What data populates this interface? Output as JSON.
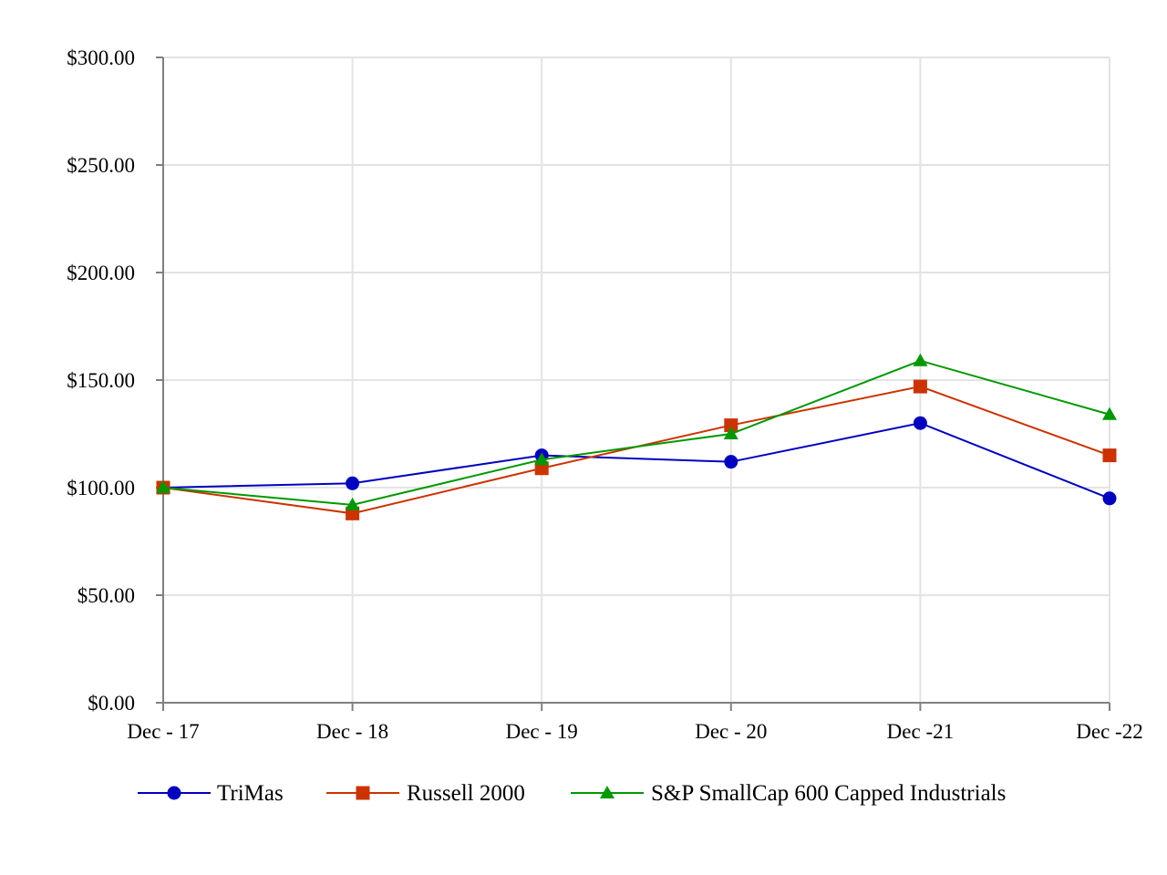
{
  "chart_data": {
    "type": "line",
    "categories": [
      "Dec - 17",
      "Dec - 18",
      "Dec - 19",
      "Dec - 20",
      "Dec -21",
      "Dec -22"
    ],
    "y_ticks": [
      "$0.00",
      "$50.00",
      "$100.00",
      "$150.00",
      "$200.00",
      "$250.00",
      "$300.00"
    ],
    "ylim": [
      0,
      300
    ],
    "grid": true,
    "legend_position": "bottom",
    "series": [
      {
        "name": "TriMas",
        "values": [
          100,
          102,
          115,
          112,
          130,
          95
        ],
        "color": "#0000c0",
        "marker": "circle"
      },
      {
        "name": "Russell 2000",
        "values": [
          100,
          88,
          109,
          129,
          147,
          115
        ],
        "color": "#cc3300",
        "marker": "square"
      },
      {
        "name": "S&P SmallCap 600 Capped Industrials",
        "values": [
          100,
          92,
          113,
          125,
          159,
          134
        ],
        "color": "#009900",
        "marker": "triangle"
      }
    ]
  }
}
